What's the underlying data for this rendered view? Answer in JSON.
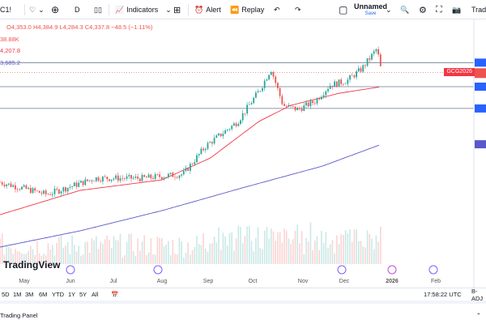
{
  "toolbar": {
    "symbol": "C1!",
    "interval": "D",
    "indicators": "Indicators",
    "alert": "Alert",
    "replay": "Replay",
    "layout_name": "Unnamed",
    "layout_save": "Save",
    "trade": "Trade"
  },
  "legend": {
    "ohlc": "O4,353.0 H4,384.9 L4,284.3 C4,337.8 −48.5 (−1.11%)",
    "volume": "38.88K",
    "ma_red": "4,207.8",
    "ma_blue": "3,685.2"
  },
  "colors": {
    "up": "#26a69a",
    "down": "#ef5350",
    "ma_fast": "#f23645",
    "ma_slow": "#5b58c9",
    "level": "#6a7a8c",
    "axis_tag": "#2962ff"
  },
  "overlay": {
    "symbol_tag": "GCG2026",
    "logo": "TradingView"
  },
  "time_axis": [
    "May",
    "Jun",
    "Jul",
    "Aug",
    "Sep",
    "Oct",
    "Nov",
    "Dec",
    "2026",
    "Feb"
  ],
  "ranges": [
    "5D",
    "1M",
    "3M",
    "6M",
    "YTD",
    "1Y",
    "5Y",
    "All"
  ],
  "clock": "17:58:22 UTC",
  "adj": "B-ADJ",
  "panel": "Trading Panel",
  "chart_data": {
    "type": "candlestick",
    "price_anchors": [
      [
        "2025-04-21",
        3340
      ],
      [
        "2025-05-22",
        3230
      ],
      [
        "2025-06-23",
        3377
      ],
      [
        "2025-07-24",
        3377
      ],
      [
        "2025-08-20",
        3414
      ],
      [
        "2025-09-04",
        3670
      ],
      [
        "2025-09-25",
        3890
      ],
      [
        "2025-10-10",
        4186
      ],
      [
        "2025-10-17",
        4370
      ],
      [
        "2025-10-25",
        4038
      ],
      [
        "2025-11-04",
        4000
      ],
      [
        "2025-11-15",
        4075
      ],
      [
        "2025-11-25",
        4222
      ],
      [
        "2025-12-06",
        4260
      ],
      [
        "2025-12-16",
        4370
      ],
      [
        "2025-12-26",
        4553
      ],
      [
        "2025-12-29",
        4337.8
      ]
    ],
    "ma_fast": [
      [
        "2025-04-21",
        3046
      ],
      [
        "2025-06-13",
        3267
      ],
      [
        "2025-08-06",
        3362
      ],
      [
        "2025-09-07",
        3561
      ],
      [
        "2025-10-09",
        3892
      ],
      [
        "2025-10-30",
        4038
      ],
      [
        "2025-12-01",
        4148
      ],
      [
        "2025-12-29",
        4207.8
      ]
    ],
    "ma_slow": [
      [
        "2025-04-21",
        2752
      ],
      [
        "2025-06-13",
        2900
      ],
      [
        "2025-08-06",
        3083
      ],
      [
        "2025-09-28",
        3289
      ],
      [
        "2025-11-20",
        3487
      ],
      [
        "2025-12-29",
        3685.2
      ]
    ],
    "levels": [
      4426,
      4207.8,
      4010
    ]
  }
}
